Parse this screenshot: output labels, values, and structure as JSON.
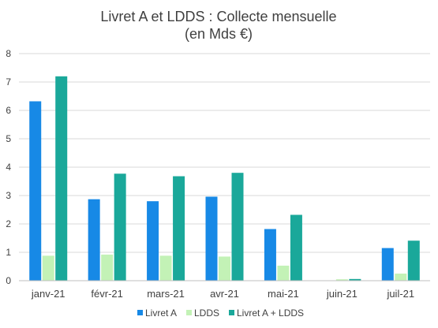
{
  "chart_data": {
    "type": "bar",
    "title": "Livret A et LDDS : Collecte mensuelle",
    "subtitle": "(en Mds €)",
    "xlabel": "",
    "ylabel": "",
    "categories": [
      "janv-21",
      "févr-21",
      "mars-21",
      "avr-21",
      "mai-21",
      "juin-21",
      "juil-21"
    ],
    "series": [
      {
        "name": "Livret A",
        "color": "#1789e6",
        "values": [
          6.32,
          2.87,
          2.8,
          2.96,
          1.82,
          0.0,
          1.15
        ]
      },
      {
        "name": "LDDS",
        "color": "#c3f2b6",
        "values": [
          0.88,
          0.92,
          0.88,
          0.85,
          0.53,
          0.05,
          0.25
        ]
      },
      {
        "name": "Livret A + LDDS",
        "color": "#1aa89a",
        "values": [
          7.2,
          3.77,
          3.68,
          3.8,
          2.32,
          0.06,
          1.41
        ]
      }
    ],
    "ylim": [
      0,
      8
    ],
    "yticks": [
      "0",
      "1",
      "2",
      "3",
      "4",
      "5",
      "6",
      "7",
      "8"
    ],
    "grid": true,
    "legend_position": "bottom"
  }
}
